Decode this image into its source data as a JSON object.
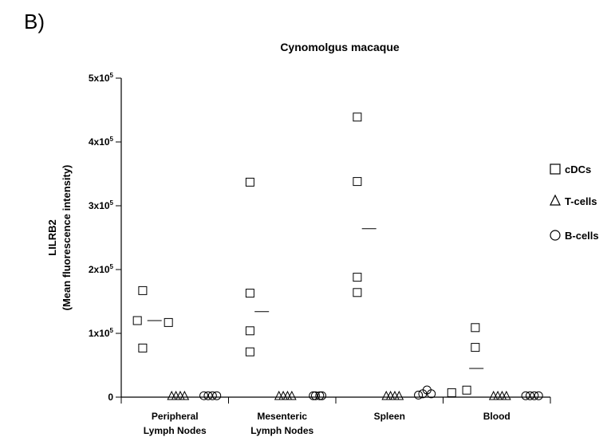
{
  "panel_label": "B)",
  "chart_data": {
    "type": "scatter",
    "title": "Cynomolgus macaque",
    "ylabel_line1": "LILRB2",
    "ylabel_line2": "(Mean fluorescence intensity)",
    "ylim": [
      0,
      500000
    ],
    "yticks": [
      {
        "value": 0,
        "base": "0",
        "exp": ""
      },
      {
        "value": 100000,
        "base": "1x10",
        "exp": "5"
      },
      {
        "value": 200000,
        "base": "2x10",
        "exp": "5"
      },
      {
        "value": 300000,
        "base": "3x10",
        "exp": "5"
      },
      {
        "value": 400000,
        "base": "4x10",
        "exp": "5"
      },
      {
        "value": 500000,
        "base": "5x10",
        "exp": "5"
      }
    ],
    "categories": [
      {
        "line1": "Peripheral",
        "line2": "Lymph Nodes"
      },
      {
        "line1": "Mesenteric",
        "line2": "Lymph Nodes"
      },
      {
        "line1": "Spleen",
        "line2": ""
      },
      {
        "line1": "Blood",
        "line2": ""
      }
    ],
    "legend_position": "right",
    "series": [
      {
        "name": "cDCs",
        "marker": "square",
        "values": [
          [
            167000,
            120000,
            117000,
            77000
          ],
          [
            337000,
            163000,
            104000,
            71000
          ],
          [
            439000,
            338000,
            188000,
            164000
          ],
          [
            109000,
            78000,
            7000,
            11000
          ]
        ],
        "mean": [
          120000,
          134000,
          264000,
          45000
        ]
      },
      {
        "name": "T-cells",
        "marker": "triangle",
        "values": [
          [
            0,
            0,
            0,
            0
          ],
          [
            0,
            0,
            0,
            0
          ],
          [
            0,
            0,
            0,
            0
          ],
          [
            0,
            0,
            0,
            0
          ]
        ]
      },
      {
        "name": "B-cells",
        "marker": "circle",
        "values": [
          [
            1000,
            1000,
            1000,
            1000
          ],
          [
            1000,
            1000,
            1000,
            1000
          ],
          [
            2000,
            4000,
            10000,
            4000
          ],
          [
            1000,
            1000,
            1000,
            1000
          ]
        ]
      }
    ]
  }
}
